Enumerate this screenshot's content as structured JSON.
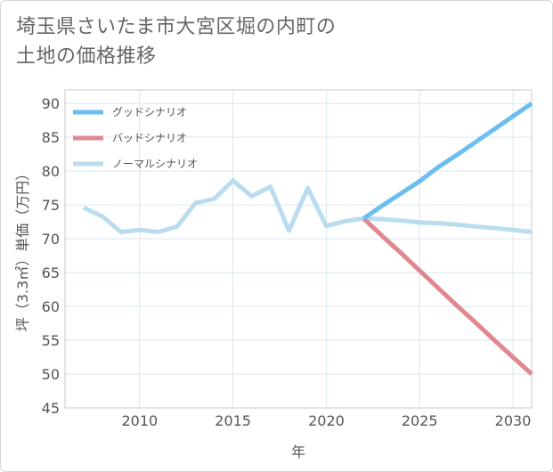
{
  "title_lines": [
    "埼玉県さいたま市大宮区堀の内町の",
    "土地の価格推移"
  ],
  "chart_data": {
    "type": "line",
    "title": "埼玉県さいたま市大宮区堀の内町の土地の価格推移",
    "xlabel": "年",
    "ylabel": "坪（3.3㎡）単価（万円）",
    "xlim": [
      2006,
      2031
    ],
    "ylim": [
      45,
      92
    ],
    "xticks": [
      2010,
      2015,
      2020,
      2025,
      2030
    ],
    "yticks": [
      45,
      50,
      55,
      60,
      65,
      70,
      75,
      80,
      85,
      90
    ],
    "grid": true,
    "legend_position": "top-left",
    "series": [
      {
        "name": "グッドシナリオ",
        "color": "#6cbef0",
        "x": [
          2022,
          2023,
          2024,
          2025,
          2026,
          2027,
          2028,
          2029,
          2030,
          2031
        ],
        "y": [
          73.0,
          74.9,
          76.7,
          78.5,
          80.6,
          82.4,
          84.3,
          86.2,
          88.1,
          90.0
        ]
      },
      {
        "name": "バッドシナリオ",
        "color": "#e0888f",
        "x": [
          2022,
          2023,
          2024,
          2025,
          2026,
          2027,
          2028,
          2029,
          2030,
          2031
        ],
        "y": [
          73.0,
          70.4,
          67.9,
          65.3,
          62.7,
          60.1,
          57.6,
          55.0,
          52.5,
          50.0
        ]
      },
      {
        "name": "ノーマルシナリオ",
        "color": "#b9ddee",
        "x": [
          2007,
          2008,
          2009,
          2010,
          2011,
          2012,
          2013,
          2014,
          2015,
          2016,
          2017,
          2018,
          2019,
          2020,
          2021,
          2022,
          2023,
          2024,
          2025,
          2026,
          2027,
          2028,
          2029,
          2030,
          2031
        ],
        "y": [
          74.6,
          73.3,
          71.0,
          71.3,
          71.0,
          71.8,
          75.3,
          75.9,
          78.6,
          76.3,
          77.7,
          71.2,
          77.5,
          71.9,
          72.6,
          73.0,
          72.9,
          72.7,
          72.4,
          72.3,
          72.1,
          71.8,
          71.6,
          71.3,
          71.0
        ]
      }
    ]
  }
}
